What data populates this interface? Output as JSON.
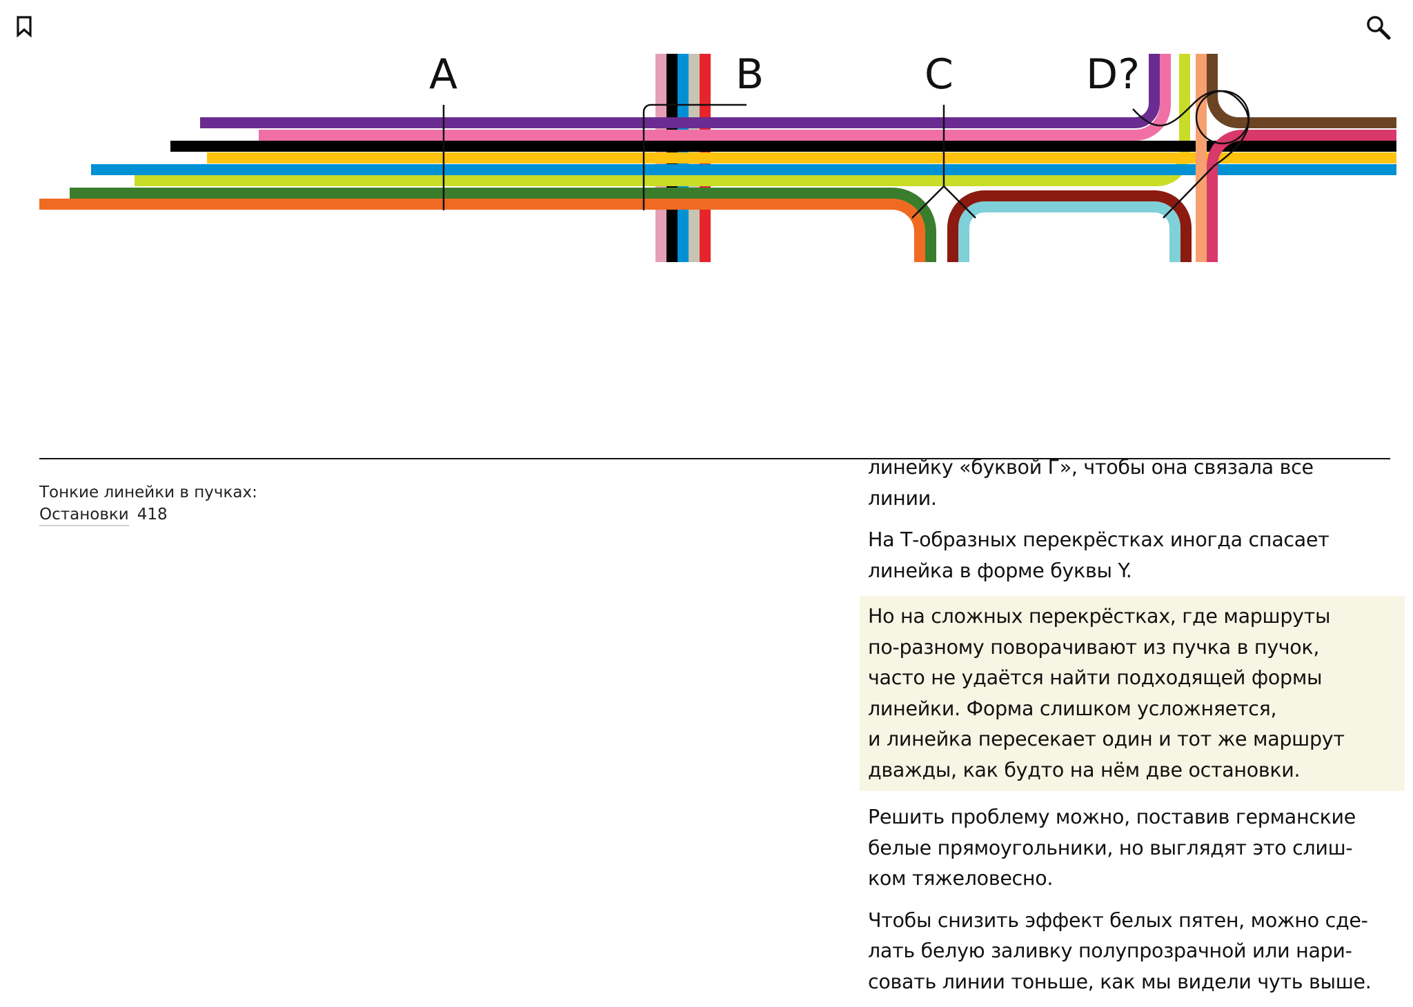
{
  "toolbar": {
    "bookmark_icon": "bookmark-icon",
    "search_icon": "search-icon"
  },
  "diagram": {
    "labels": [
      "A",
      "B",
      "C",
      "D?"
    ],
    "colors": {
      "purple": "#6a2c90",
      "pink": "#f070a6",
      "black": "#000000",
      "yellow": "#ffc20e",
      "blue": "#0091d5",
      "lime": "#c8dc28",
      "green": "#3a7d2c",
      "orange": "#f06a22",
      "brown": "#6b4423",
      "crimson": "#d9386a",
      "peach": "#f6a070",
      "darkred": "#8b1a10",
      "cyan": "#7fd0d8",
      "lightpink": "#e5a0b6",
      "gray": "#c7c4b4",
      "red": "#e6242b",
      "highlight": "#f7f5e3"
    }
  },
  "caption": {
    "title": "Тонкие линейки в пучках:",
    "link": "Остановки",
    "page": "418"
  },
  "article": {
    "paragraphs": [
      "линейку «буквой Г», чтобы она связала все\nлинии.",
      "На Т-образных перекрёстках иногда спасает\nлинейка в форме буквы Y.",
      "Но на сложных перекрёстках, где маршруты\nпо-разному поворачивают из пучка в пучок,\nчасто не удаётся найти подходящей формы\nлинейки. Форма слишком усложняется,\nи линейка пересекает один и тот же маршрут\nдважды, как будто на нём две остановки.",
      "Решить проблему можно, поставив германские\nбелые прямоугольники, но выглядят это слиш-\nком тяжеловесно.",
      "Чтобы снизить эффект белых пятен, можно сде-\nлать белую заливку полупрозрачной или нари-\nсовать линии тоньше, как мы видели чуть выше."
    ]
  }
}
